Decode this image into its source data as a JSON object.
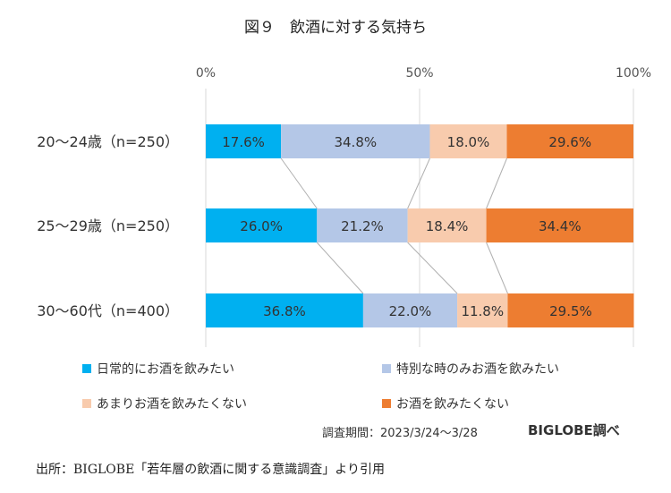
{
  "chart_data": {
    "type": "bar",
    "orientation": "horizontal",
    "stacked": true,
    "title": "図９　飲酒に対する気持ち",
    "categories": [
      "20～24歳（n=250）",
      "25～29歳（n=250）",
      "30～60代（n=400）"
    ],
    "series": [
      {
        "name": "日常的にお酒を飲みたい",
        "color": "#00b0f0",
        "values": [
          17.6,
          26.0,
          36.8
        ],
        "labels": [
          "17.6%",
          "26.0%",
          "36.8%"
        ]
      },
      {
        "name": "特別な時のみお酒を飲みたい",
        "color": "#b4c7e7",
        "values": [
          34.8,
          21.2,
          22.0
        ],
        "labels": [
          "34.8%",
          "21.2%",
          "22.0%"
        ]
      },
      {
        "name": "あまりお酒を飲みたくない",
        "color": "#f8cbad",
        "values": [
          18.0,
          18.4,
          11.8
        ],
        "labels": [
          "18.0%",
          "18.4%",
          "11.8%"
        ]
      },
      {
        "name": "お酒を飲みたくない",
        "color": "#ed7d31",
        "values": [
          29.6,
          34.4,
          29.5
        ],
        "labels": [
          "29.6%",
          "34.4%",
          "29.5%"
        ]
      }
    ],
    "xlim": [
      0,
      100
    ],
    "x_ticks": [
      0,
      50,
      100
    ],
    "x_tick_labels": [
      "0%",
      "50%",
      "100%"
    ],
    "x_axis_position": "top",
    "grid": true,
    "series_connector_lines": true,
    "legend_position": "bottom"
  },
  "footer": {
    "survey_period": "調査期間：2023/3/24～3/28",
    "brand": "BIGLOBE調べ",
    "source": "出所：BIGLOBE「若年層の飲酒に関する意識調査」より引用"
  }
}
